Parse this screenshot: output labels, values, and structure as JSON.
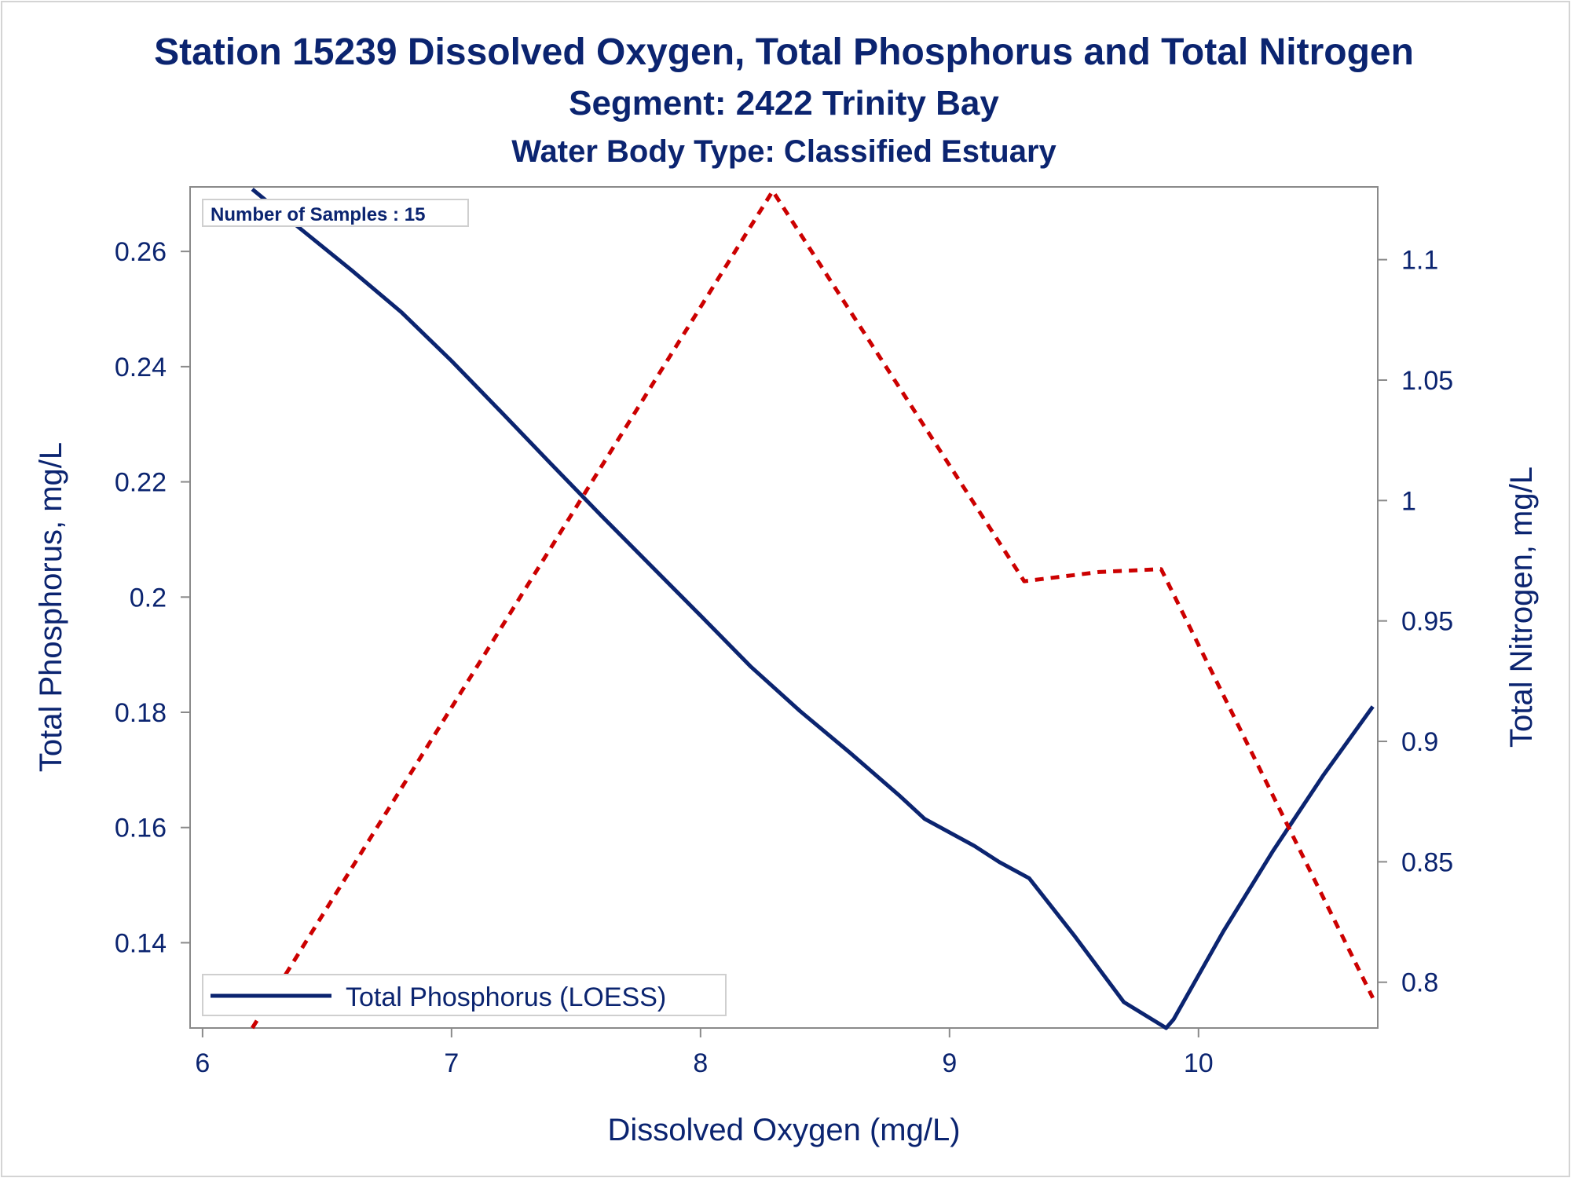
{
  "chart_data": {
    "type": "line",
    "title": "Station 15239  Dissolved Oxygen, Total Phosphorus and Total Nitrogen",
    "subtitle": "Segment: 2422  Trinity Bay",
    "subtitle2": "Water Body Type: Classified Estuary",
    "xlabel": "Dissolved Oxygen (mg/L)",
    "ylabel": "Total Phosphorus, mg/L",
    "y2label": "Total Nitrogen, mg/L",
    "xlim": [
      5.95,
      10.72
    ],
    "ylim": [
      0.1252,
      0.2712
    ],
    "y2lim": [
      0.781,
      1.1302
    ],
    "xticks": [
      "6",
      "7",
      "8",
      "9",
      "10"
    ],
    "yticks": [
      "0.14",
      "0.16",
      "0.18",
      "0.2",
      "0.22",
      "0.24",
      "0.26"
    ],
    "y2ticks": [
      "0.8",
      "0.85",
      "0.9",
      "0.95",
      "1",
      "1.05",
      "1.1"
    ],
    "inset": "Number of Samples : 15",
    "legend_label": "Total Phosphorus (LOESS)",
    "legend_position": "bottom-left",
    "grid": false,
    "series": [
      {
        "name": "Total Phosphorus (LOESS)",
        "axis": "left",
        "color": "#0b2470",
        "style": "solid",
        "x": [
          6.2,
          6.4,
          6.6,
          6.8,
          7.0,
          7.2,
          7.4,
          7.6,
          7.8,
          8.0,
          8.2,
          8.4,
          8.6,
          8.8,
          8.9,
          9.1,
          9.2,
          9.32,
          9.5,
          9.7,
          9.87,
          9.9,
          10.1,
          10.3,
          10.5,
          10.7
        ],
        "y": [
          0.2708,
          0.2637,
          0.2567,
          0.2494,
          0.241,
          0.2321,
          0.2231,
          0.2142,
          0.2055,
          0.1968,
          0.188,
          0.1802,
          0.173,
          0.1655,
          0.1615,
          0.1568,
          0.154,
          0.1512,
          0.1413,
          0.1297,
          0.1252,
          0.1267,
          0.142,
          0.156,
          0.169,
          0.181
        ]
      },
      {
        "name": "",
        "axis": "right",
        "color": "#cc0000",
        "style": "dashed",
        "x": [
          6.2,
          8.29,
          9.3,
          9.6,
          9.85,
          10.7
        ],
        "y": [
          0.781,
          1.1285,
          0.9665,
          0.9703,
          0.9715,
          0.7935
        ]
      }
    ]
  }
}
